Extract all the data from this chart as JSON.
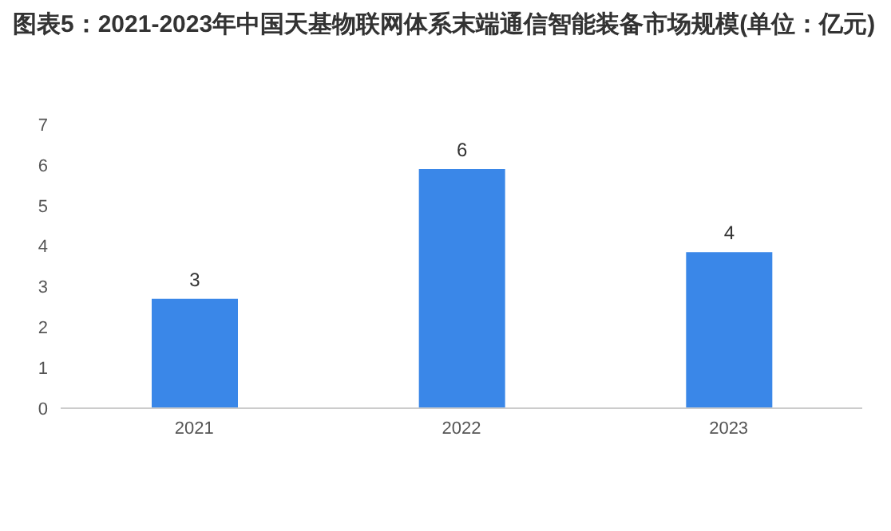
{
  "chart_data": {
    "type": "bar",
    "title": "图表5：2021-2023年中国天基物联网体系末端通信智能装备市场规模(单位：亿元)",
    "categories": [
      "2021",
      "2022",
      "2023"
    ],
    "values": [
      2.7,
      5.9,
      3.85
    ],
    "value_labels": [
      "3",
      "6",
      "4"
    ],
    "color": "#3a87e8",
    "ylim": [
      0,
      7
    ],
    "yticks": [
      0,
      1,
      2,
      3,
      4,
      5,
      6,
      7
    ],
    "grid": false
  }
}
